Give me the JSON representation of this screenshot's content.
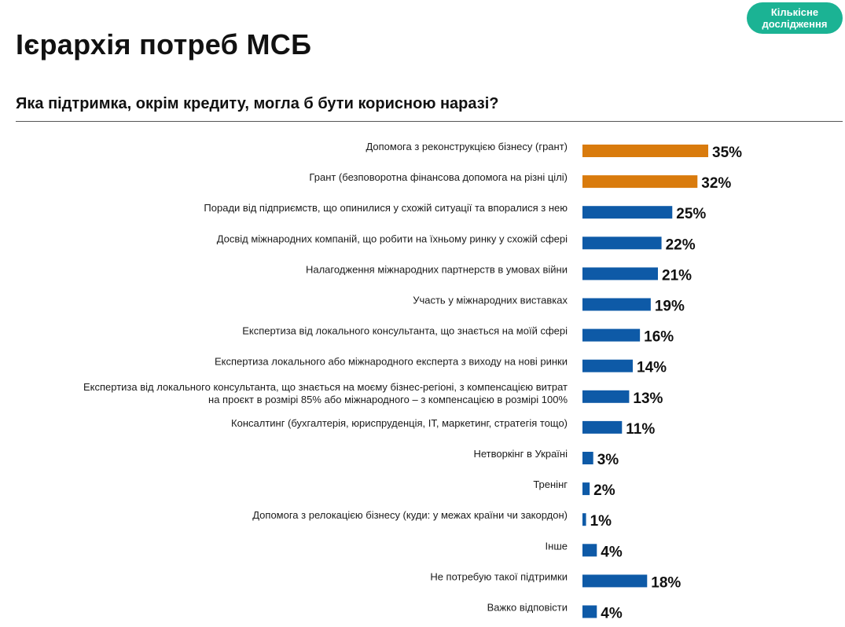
{
  "page": {
    "title": "Ієрархія потреб МСБ",
    "badge": {
      "line1": "Кількісне",
      "line2": "дослідження"
    },
    "question": "Яка підтримка, окрім кредиту, могла б бути корисною наразі?"
  },
  "colors": {
    "badge": "#1bb394",
    "highlight": "#d97b0d",
    "primary": "#0e5aa7"
  },
  "chart_data": {
    "type": "bar",
    "orientation": "horizontal",
    "title": "",
    "xlabel": "",
    "ylabel": "",
    "xlim": [
      0,
      35
    ],
    "grid": false,
    "legend": "none",
    "categories": [
      [
        "Допомога з реконструкцією бізнесу (грант)"
      ],
      [
        "Грант (безповоротна фінансова допомога на різні цілі)"
      ],
      [
        "Поради від підприємств, що опинилися у схожій ситуації та впоралися з нею"
      ],
      [
        "Досвід міжнародних компаній, що робити на їхньому ринку у схожій сфері"
      ],
      [
        "Налагодження міжнародних партнерств в умовах війни"
      ],
      [
        "Участь у міжнародних виставках"
      ],
      [
        "Експертиза від локального консультанта, що знається на моїй сфері"
      ],
      [
        "Експертиза локального або міжнародного експерта з виходу на нові ринки"
      ],
      [
        "Експертиза від локального консультанта, що знається на моєму бізнес-регіоні, з компенсацією витрат",
        "на проєкт в розмірі 85% або міжнародного – з компенсацією в розмірі  100%"
      ],
      [
        "Консалтинг (бухгалтерія, юриспруденція, ІТ, маркетинг, стратегія тощо)"
      ],
      [
        "Нетворкінг в Україні"
      ],
      [
        "Тренінг"
      ],
      [
        "Допомога з релокацією бізнесу (куди: у межах країни чи закордон)"
      ],
      [
        "Інше"
      ],
      [
        "Не потребую такої підтримки"
      ],
      [
        "Важко відповісти"
      ]
    ],
    "values": [
      35,
      32,
      25,
      22,
      21,
      19,
      16,
      14,
      13,
      11,
      3,
      2,
      1,
      4,
      18,
      4
    ],
    "value_labels": [
      "35%",
      "32%",
      "25%",
      "22%",
      "21%",
      "19%",
      "16%",
      "14%",
      "13%",
      "11%",
      "3%",
      "2%",
      "1%",
      "4%",
      "18%",
      "4%"
    ],
    "highlighted": [
      true,
      true,
      false,
      false,
      false,
      false,
      false,
      false,
      false,
      false,
      false,
      false,
      false,
      false,
      false,
      false
    ]
  }
}
